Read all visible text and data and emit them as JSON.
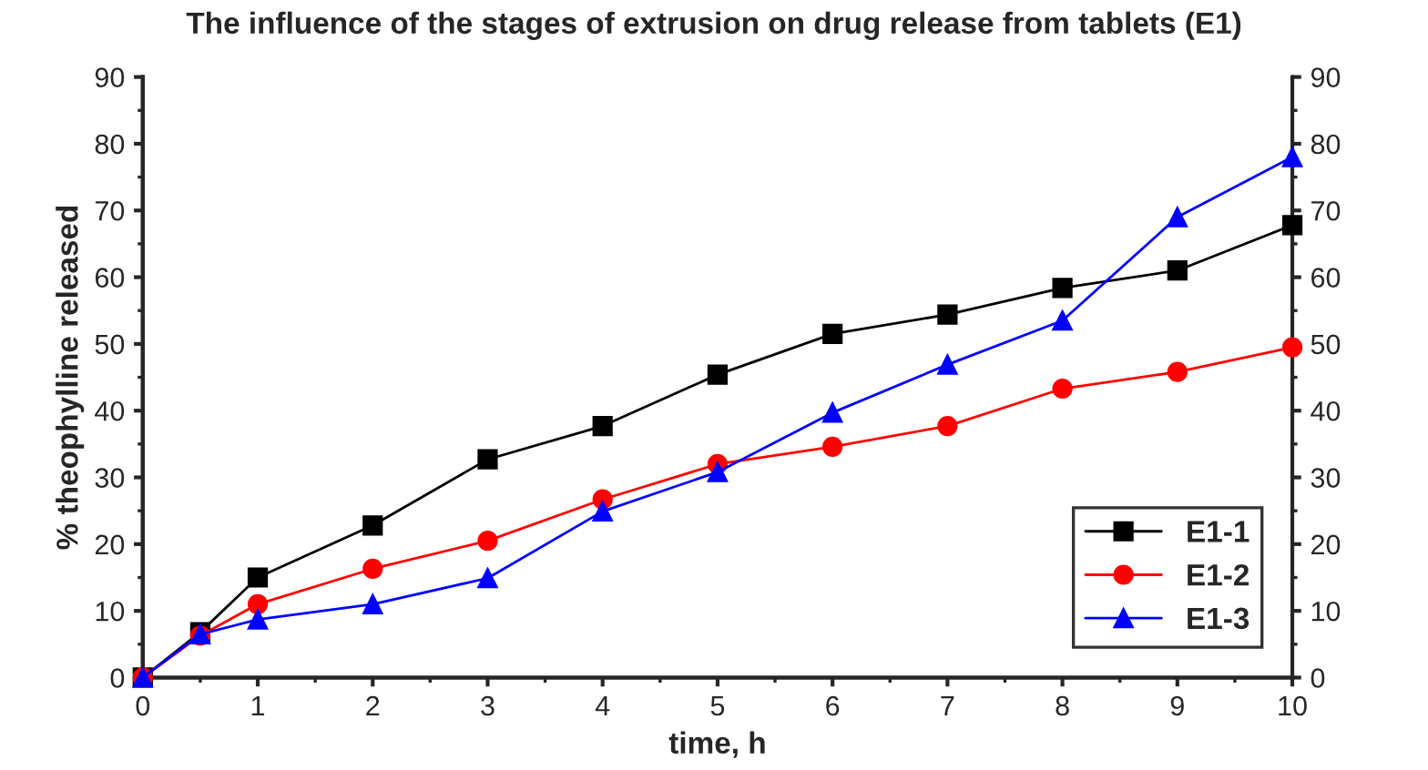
{
  "chart_data": {
    "type": "line",
    "title": "The influence of the stages of extrusion on drug release from tablets (E1)",
    "xlabel": "time, h",
    "ylabel": "% theophylline released",
    "x": [
      0,
      0.5,
      1,
      2,
      3,
      4,
      5,
      6,
      7,
      8,
      9,
      10
    ],
    "series": [
      {
        "name": "E1-1",
        "color": "#000000",
        "marker": "square",
        "values": [
          0,
          6.8,
          15,
          22.8,
          32.7,
          37.7,
          45.4,
          51.5,
          54.4,
          58.4,
          61,
          67.8
        ]
      },
      {
        "name": "E1-2",
        "color": "#ff0000",
        "marker": "circle",
        "values": [
          0,
          6.3,
          11,
          16.3,
          20.5,
          26.7,
          32,
          34.6,
          37.7,
          43.3,
          45.8,
          49.5
        ]
      },
      {
        "name": "E1-3",
        "color": "#0000ff",
        "marker": "triangle",
        "values": [
          0,
          6.5,
          8.7,
          11,
          14.9,
          24.9,
          30.8,
          39.7,
          46.9,
          53.5,
          69,
          78
        ]
      }
    ],
    "xlim": [
      0,
      10
    ],
    "xticks": [
      0,
      1,
      2,
      3,
      4,
      5,
      6,
      7,
      8,
      9,
      10
    ],
    "ylim": [
      0,
      90
    ],
    "yticks": [
      0,
      10,
      20,
      30,
      40,
      50,
      60,
      70,
      80,
      90
    ],
    "y2lim": [
      0,
      90
    ],
    "y2ticks": [
      0,
      10,
      20,
      30,
      40,
      50,
      60,
      70,
      80,
      90
    ],
    "grid": false,
    "legend": "bottom right",
    "line_style": "solid"
  }
}
